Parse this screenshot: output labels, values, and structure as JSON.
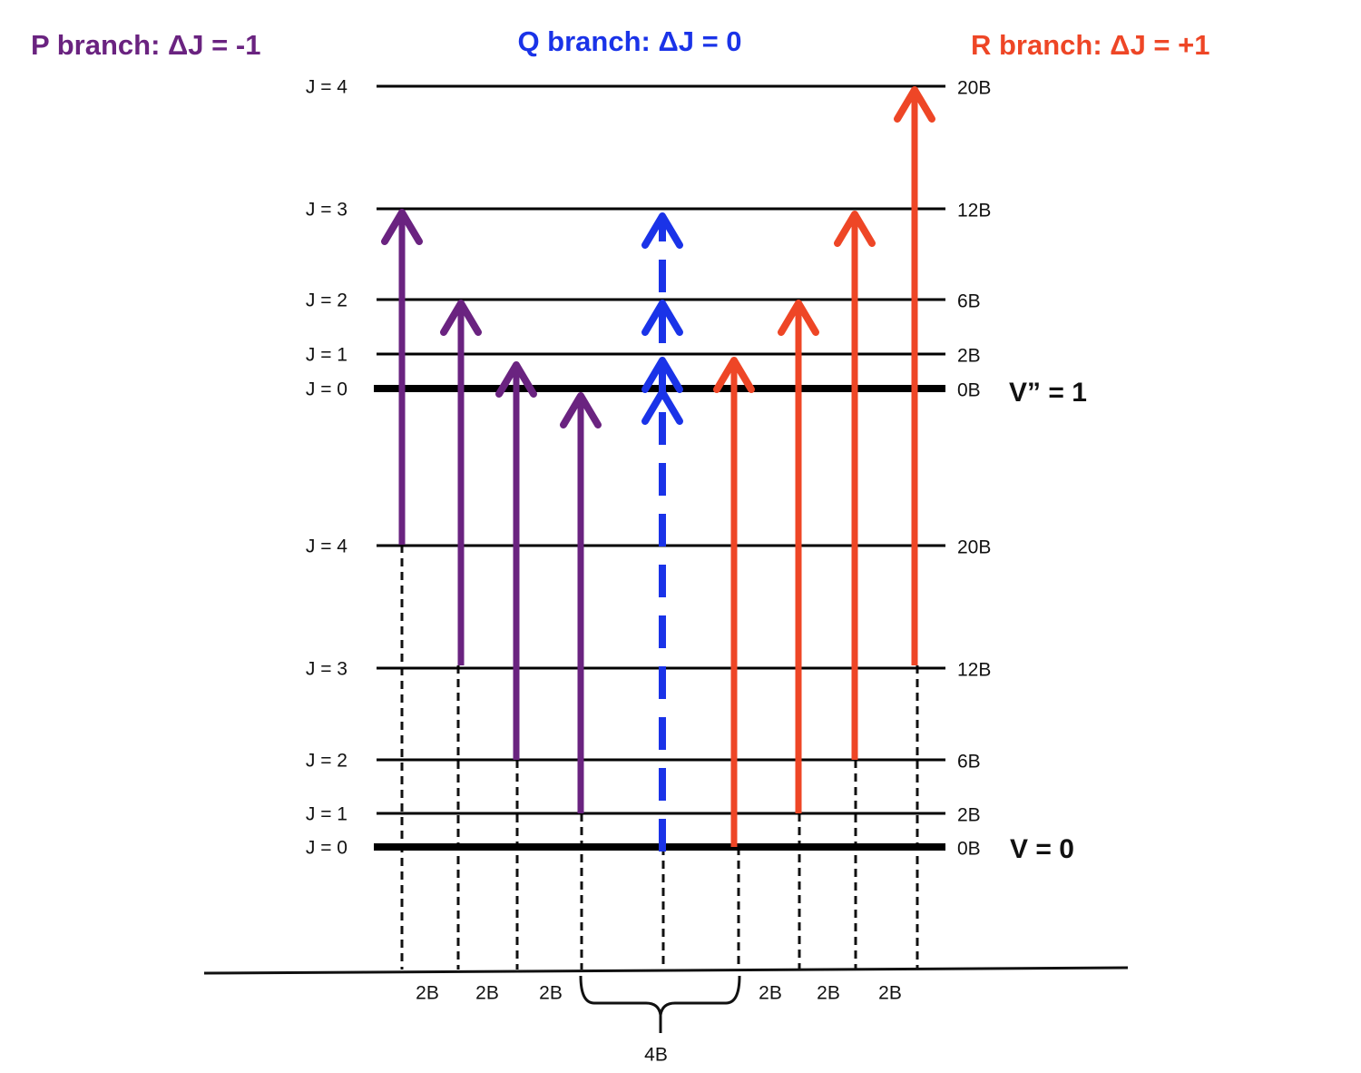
{
  "branches": [
    {
      "label": "P branch: ΔJ = -1"
    },
    {
      "label": "Q branch: ΔJ = 0"
    },
    {
      "label": "R branch: ΔJ = +1"
    }
  ],
  "upper_state": {
    "label": "V” = 1",
    "levels": [
      {
        "j": "J = 4",
        "energy": "20B"
      },
      {
        "j": "J = 3",
        "energy": "12B"
      },
      {
        "j": "J = 2",
        "energy": "6B"
      },
      {
        "j": "J = 1",
        "energy": "2B"
      },
      {
        "j": "J = 0",
        "energy": "0B"
      }
    ]
  },
  "lower_state": {
    "label": "V = 0",
    "levels": [
      {
        "j": "J = 4",
        "energy": "20B"
      },
      {
        "j": "J = 3",
        "energy": "12B"
      },
      {
        "j": "J = 2",
        "energy": "6B"
      },
      {
        "j": "J = 1",
        "energy": "2B"
      },
      {
        "j": "J = 0",
        "energy": "0B"
      }
    ]
  },
  "spacings": [
    "2B",
    "2B",
    "2B",
    "4B",
    "2B",
    "2B",
    "2B"
  ]
}
